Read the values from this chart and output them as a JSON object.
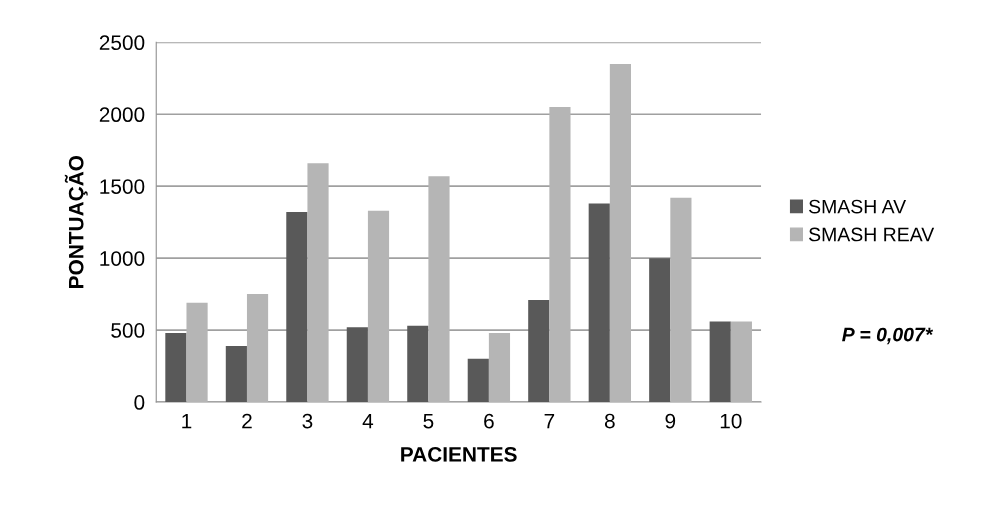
{
  "chart_data": {
    "type": "bar",
    "xlabel": "PACIENTES",
    "ylabel": "PONTUAÇÃO",
    "categories": [
      "1",
      "2",
      "3",
      "4",
      "5",
      "6",
      "7",
      "8",
      "9",
      "10"
    ],
    "series": [
      {
        "name": "SMASH AV",
        "color": "#595959",
        "values": [
          480,
          390,
          1320,
          520,
          530,
          300,
          710,
          1380,
          1000,
          560
        ]
      },
      {
        "name": "SMASH REAV",
        "color": "#b5b5b5",
        "values": [
          690,
          750,
          1660,
          1330,
          1570,
          480,
          2050,
          2350,
          1420,
          560
        ]
      }
    ],
    "ylim": [
      0,
      2500
    ],
    "yticks": [
      0,
      500,
      1000,
      1500,
      2000,
      2500
    ],
    "grid": "y",
    "legend": "right",
    "annotations": [
      "P = 0,007*"
    ]
  }
}
